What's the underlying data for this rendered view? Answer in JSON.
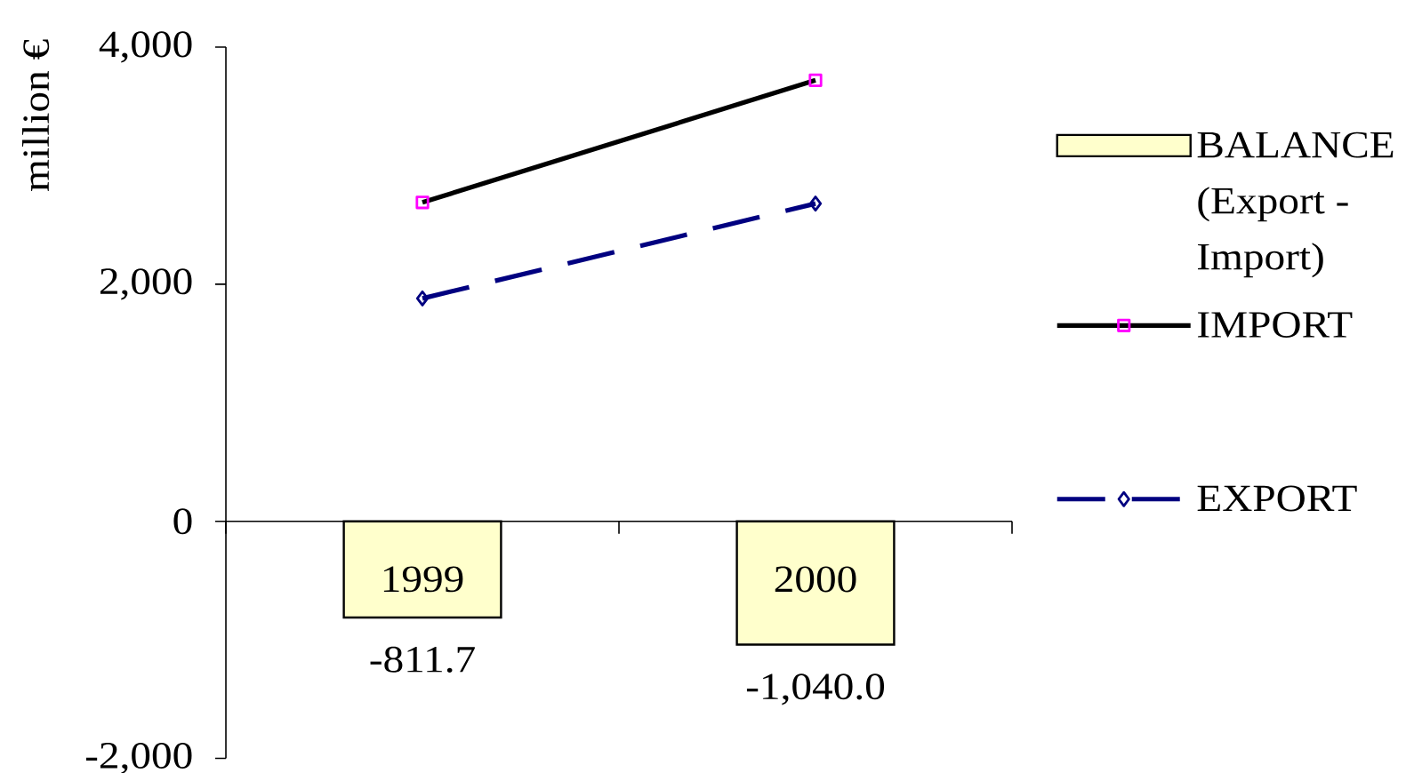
{
  "chart_data": {
    "type": "bar",
    "ylabel": "million €",
    "categories": [
      "1999",
      "2000"
    ],
    "series": [
      {
        "name": "BALANCE (Export - Import)",
        "color": "#ffffcc",
        "values": [
          -811.7,
          -1040.0
        ],
        "value_labels": [
          "-811.7",
          "-1,040.0"
        ]
      },
      {
        "name": "IMPORT",
        "type": "line",
        "color": "#000000",
        "values": [
          2690,
          3720
        ],
        "marker": "square",
        "line_style": "solid"
      },
      {
        "name": "EXPORT",
        "type": "line",
        "color": "#000080",
        "values": [
          1880,
          2680
        ],
        "marker": "diamond",
        "line_style": "dashed"
      }
    ],
    "ylim": [
      -2000,
      4000
    ],
    "yticks": [
      {
        "value": -2000,
        "label": "-2,000"
      },
      {
        "value": 0,
        "label": "0"
      },
      {
        "value": 2000,
        "label": "2,000"
      },
      {
        "value": 4000,
        "label": "4,000"
      }
    ],
    "legend": "right"
  }
}
